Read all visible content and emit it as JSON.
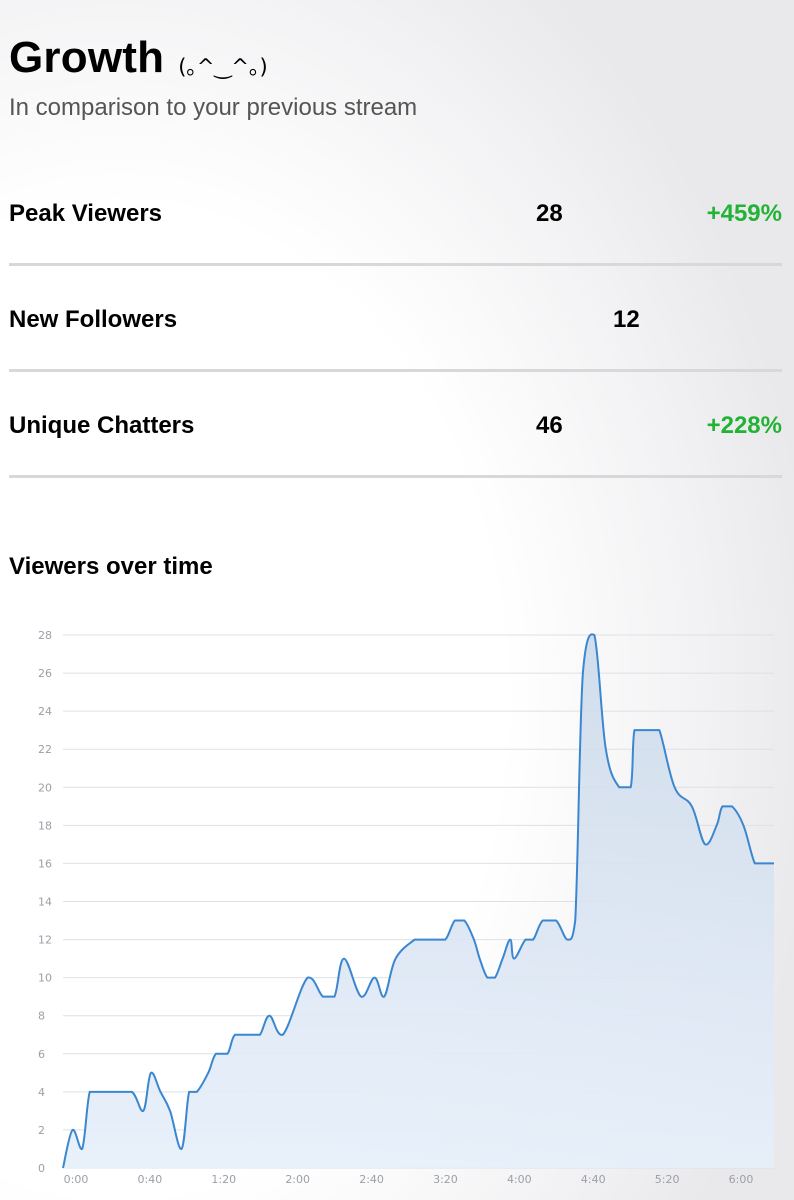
{
  "header": {
    "title": "Growth",
    "emoticon": "(｡^‿^｡)",
    "subtitle": "In comparison to your previous stream"
  },
  "stats": [
    {
      "label": "Peak Viewers",
      "value": "28",
      "change": "+459%"
    },
    {
      "label": "New Followers",
      "value": "12",
      "change": ""
    },
    {
      "label": "Unique Chatters",
      "value": "46",
      "change": "+228%"
    }
  ],
  "colors": {
    "positive": "#22b336",
    "line": "#3a87d0",
    "fill_top": "#cddaea",
    "fill_bottom": "#e6effa",
    "grid": "#dde0e6"
  },
  "chart_heading": "Viewers over time",
  "chart_data": {
    "type": "area",
    "x_unit": "minutes",
    "x_ticks": [
      "0:00",
      "0:40",
      "1:20",
      "2:00",
      "2:40",
      "3:20",
      "4:00",
      "4:40",
      "5:20",
      "6:00"
    ],
    "y_ticks": [
      0,
      2,
      4,
      6,
      8,
      10,
      12,
      14,
      16,
      18,
      20,
      22,
      24,
      26,
      28
    ],
    "xlim": [
      0,
      372
    ],
    "ylim": [
      0,
      28
    ],
    "grid": true,
    "x": [
      0,
      5,
      10,
      14,
      19,
      26,
      36,
      42,
      46,
      51,
      56,
      62,
      66,
      70,
      76,
      80,
      86,
      90,
      98,
      103,
      108,
      115,
      128,
      136,
      142,
      147,
      156,
      163,
      168,
      174,
      184,
      186,
      194,
      200,
      205,
      210,
      215,
      218,
      222,
      226,
      230,
      234,
      236,
      242,
      246,
      251,
      258,
      264,
      268,
      272,
      278,
      284,
      291,
      297,
      299,
      304,
      308,
      312,
      320,
      329,
      336,
      342,
      345,
      350,
      356,
      362,
      366,
      372
    ],
    "y": [
      0,
      2,
      1,
      4,
      4,
      4,
      4,
      3,
      5,
      4,
      3,
      1,
      4,
      4,
      5,
      6,
      6,
      7,
      7,
      7,
      8,
      7,
      10,
      9,
      9,
      11,
      9,
      10,
      9,
      11,
      12,
      12,
      12,
      12,
      13,
      13,
      12,
      11,
      10,
      10,
      11,
      12,
      11,
      12,
      12,
      13,
      13,
      12,
      13,
      26,
      28,
      22,
      20,
      20,
      23,
      23,
      23,
      23,
      20,
      19,
      17,
      18,
      19,
      19,
      18,
      16,
      16,
      16
    ]
  }
}
